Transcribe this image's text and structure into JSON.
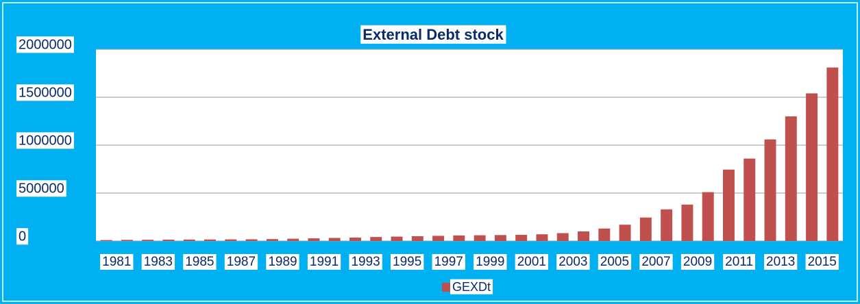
{
  "chart_data": {
    "type": "bar",
    "title": "External Debt stock",
    "categories": [
      "1981",
      null,
      "1983",
      null,
      "1985",
      null,
      "1987",
      null,
      "1989",
      null,
      "1991",
      null,
      "1993",
      null,
      "1995",
      null,
      "1997",
      null,
      "1999",
      null,
      "2001",
      null,
      "2003",
      null,
      "2005",
      null,
      "2007",
      null,
      "2009",
      null,
      "2011",
      null,
      "2013",
      null,
      "2015",
      null
    ],
    "series": [
      {
        "name": "GEXDt",
        "color": "#c0504d",
        "values": [
          10000,
          12000,
          13000,
          14000,
          15000,
          16000,
          17000,
          18000,
          20000,
          24000,
          28000,
          32000,
          36000,
          42000,
          46000,
          50000,
          54000,
          58000,
          60000,
          62000,
          64000,
          70000,
          82000,
          100000,
          130000,
          170000,
          245000,
          330000,
          380000,
          510000,
          745000,
          860000,
          1060000,
          1300000,
          1540000,
          1810000
        ]
      }
    ],
    "ylim": [
      0,
      2000000
    ],
    "yticks": [
      0,
      500000,
      1000000,
      1500000,
      2000000
    ],
    "grid": true,
    "legend": "bottom"
  }
}
